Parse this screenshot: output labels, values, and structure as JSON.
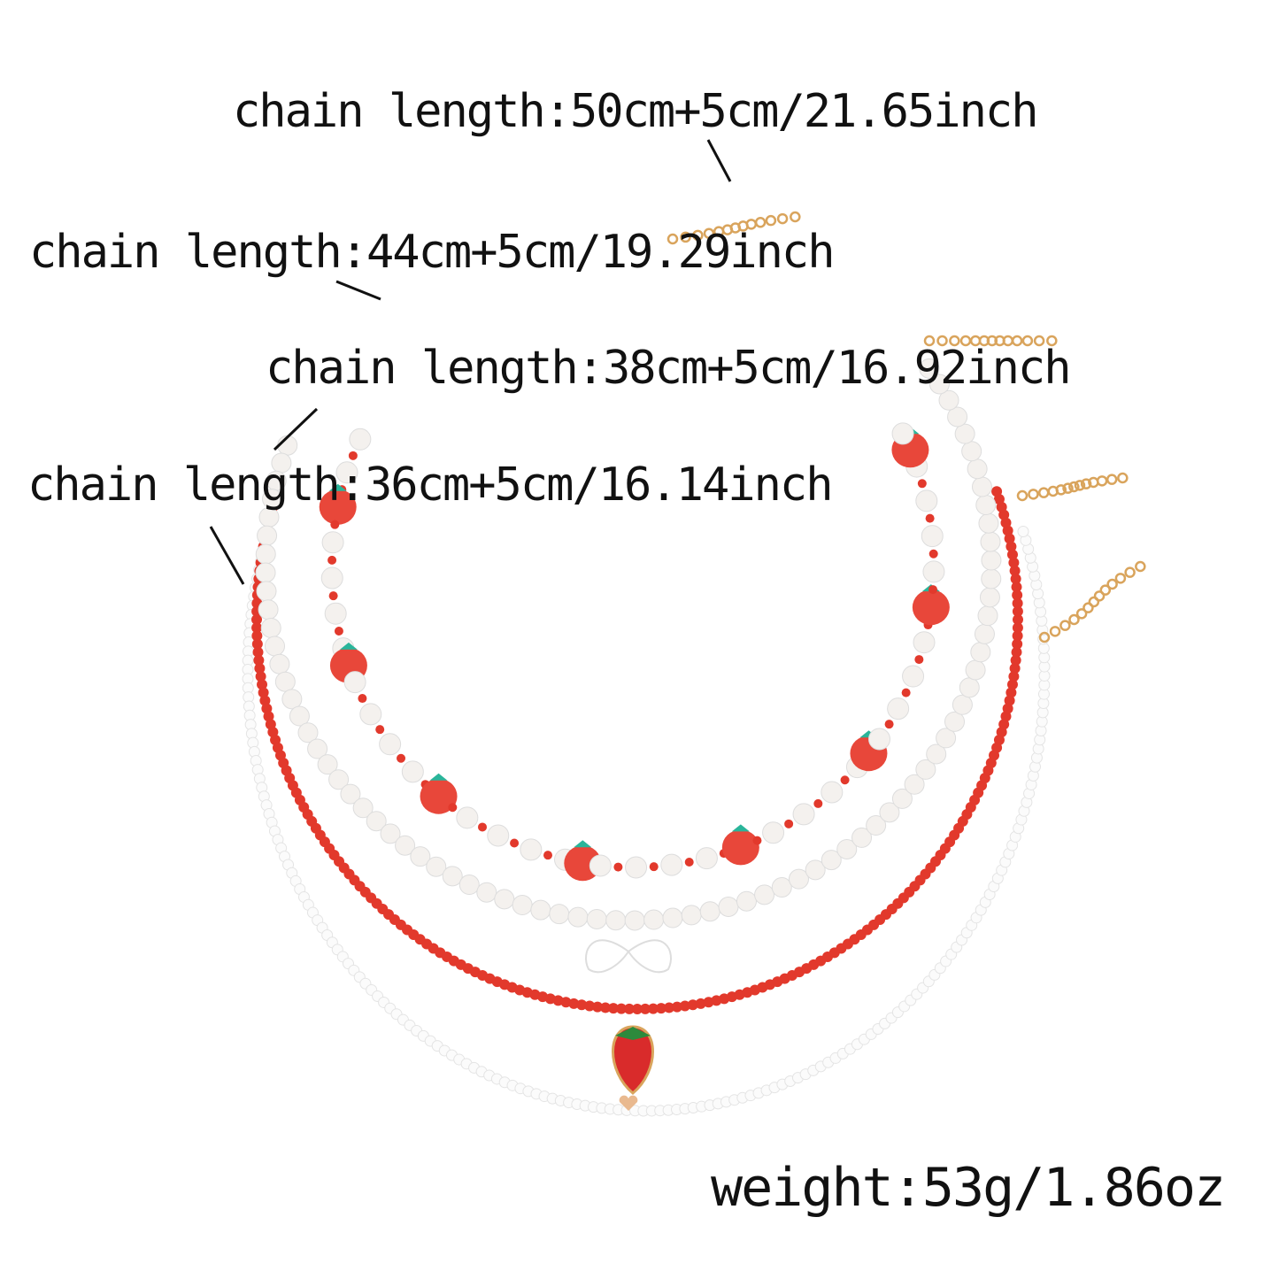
{
  "annotations": {
    "chain_50": "chain length:50cm+5cm/21.65inch",
    "chain_44": "chain length:44cm+5cm/19.29inch",
    "chain_38": "chain length:38cm+5cm/16.92inch",
    "chain_36": "chain length:36cm+5cm/16.14inch",
    "weight": "weight:53g/1.86oz"
  },
  "colors": {
    "pearl": "#f4f1ee",
    "red_bead": "#e2392c",
    "strawberry": "#e8473a",
    "leaf": "#2ab59a",
    "gold_chain": "#d9a45c",
    "white_seed": "#fbfbfb"
  }
}
